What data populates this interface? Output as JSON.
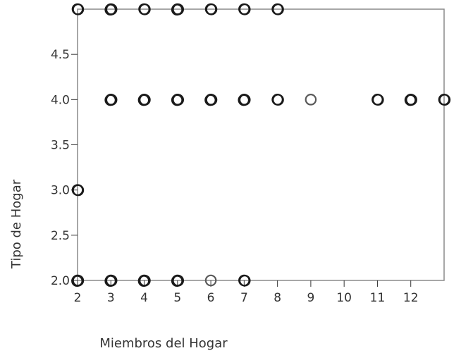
{
  "chart_data": {
    "type": "scatter",
    "title": "",
    "xlabel": "Miembros del Hogar",
    "ylabel": "Tipo de Hogar",
    "xlim": [
      2,
      13
    ],
    "ylim": [
      2.0,
      5.0
    ],
    "xticks": [
      2,
      3,
      4,
      5,
      6,
      7,
      8,
      9,
      10,
      11,
      12
    ],
    "yticks": [
      "2.0",
      "2.5",
      "3.0",
      "3.5",
      "4.0",
      "4.5"
    ],
    "grid": false,
    "marker": "open-circle",
    "colors": {
      "frame": "#8a8a8a",
      "text": "#333333",
      "marker_dense": "#1a1a1a",
      "marker_light": "#5a5a5a"
    },
    "points": [
      {
        "x": 2,
        "y": 5,
        "n": 2
      },
      {
        "x": 3,
        "y": 5,
        "n": 3
      },
      {
        "x": 4,
        "y": 5,
        "n": 2
      },
      {
        "x": 5,
        "y": 5,
        "n": 3
      },
      {
        "x": 6,
        "y": 5,
        "n": 2
      },
      {
        "x": 7,
        "y": 5,
        "n": 2
      },
      {
        "x": 8,
        "y": 5,
        "n": 2
      },
      {
        "x": 3,
        "y": 4,
        "n": 3
      },
      {
        "x": 4,
        "y": 4,
        "n": 3
      },
      {
        "x": 5,
        "y": 4,
        "n": 3
      },
      {
        "x": 6,
        "y": 4,
        "n": 3
      },
      {
        "x": 7,
        "y": 4,
        "n": 3
      },
      {
        "x": 8,
        "y": 4,
        "n": 2
      },
      {
        "x": 9,
        "y": 4,
        "n": 1
      },
      {
        "x": 11,
        "y": 4,
        "n": 2
      },
      {
        "x": 12,
        "y": 4,
        "n": 3
      },
      {
        "x": 13,
        "y": 4,
        "n": 2
      },
      {
        "x": 2,
        "y": 3,
        "n": 2
      },
      {
        "x": 2,
        "y": 2,
        "n": 3
      },
      {
        "x": 3,
        "y": 2,
        "n": 3
      },
      {
        "x": 4,
        "y": 2,
        "n": 3
      },
      {
        "x": 5,
        "y": 2,
        "n": 3
      },
      {
        "x": 6,
        "y": 2,
        "n": 1
      },
      {
        "x": 7,
        "y": 2,
        "n": 2
      }
    ]
  }
}
